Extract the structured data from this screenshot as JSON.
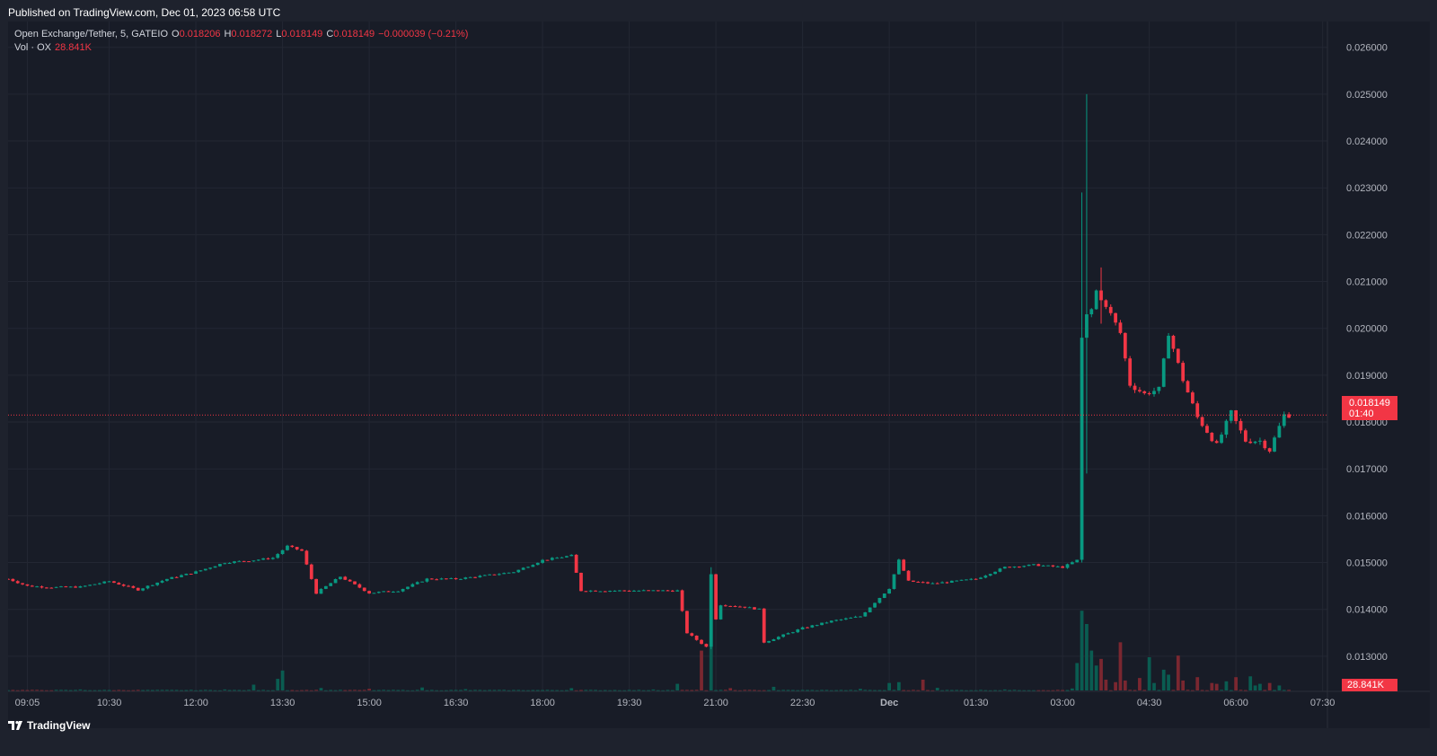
{
  "published": "Published on TradingView.com, Dec 01, 2023 06:58 UTC",
  "legend": {
    "symbol": "Open Exchange/Tether, 5, GATEIO",
    "o_label": "O",
    "o_value": "0.018206",
    "h_label": "H",
    "h_value": "0.018272",
    "l_label": "L",
    "l_value": "0.018149",
    "c_label": "C",
    "c_value": "0.018149",
    "change": "−0.000039 (−0.21%)",
    "vol_label": "Vol · OX",
    "vol_value": "28.841K"
  },
  "price_tag": {
    "price": "0.018149",
    "countdown": "01:40"
  },
  "volume_tag": "28.841K",
  "footer": {
    "brand": "TradingView",
    "logo_icon": "tradingview-logo-icon"
  },
  "colors": {
    "up": "#089981",
    "down": "#f23645",
    "up_volume": "#0a5c51",
    "down_volume": "#7a2730",
    "background": "#181c27",
    "grid": "#232733",
    "axis_text": "#b2b5be"
  },
  "chart_data": {
    "type": "candlestick",
    "interval_minutes": 5,
    "y_axis": {
      "min": 0.01225,
      "max": 0.02655,
      "ticks": [
        "0.026000",
        "0.025000",
        "0.024000",
        "0.023000",
        "0.022000",
        "0.021000",
        "0.020000",
        "0.019000",
        "0.018000",
        "0.017000",
        "0.016000",
        "0.015000",
        "0.014000",
        "0.013000"
      ]
    },
    "x_axis": {
      "start": "08:45",
      "end": "07:35",
      "tick_labels": [
        "09:05",
        "10:30",
        "12:00",
        "13:30",
        "15:00",
        "16:30",
        "18:00",
        "19:30",
        "21:00",
        "22:30",
        "Dec",
        "01:30",
        "03:00",
        "04:30",
        "06:00",
        "07:30"
      ]
    },
    "last_price": 0.018149,
    "price_path": [
      [
        "08:45",
        0.01465
      ],
      [
        "09:05",
        0.0145
      ],
      [
        "09:30",
        0.01447
      ],
      [
        "10:00",
        0.01448
      ],
      [
        "10:30",
        0.0146
      ],
      [
        "11:00",
        0.01442
      ],
      [
        "11:30",
        0.01465
      ],
      [
        "12:00",
        0.0148
      ],
      [
        "12:30",
        0.015
      ],
      [
        "13:00",
        0.01505
      ],
      [
        "13:20",
        0.0151
      ],
      [
        "13:35",
        0.01535
      ],
      [
        "13:50",
        0.01525
      ],
      [
        "14:05",
        0.01435
      ],
      [
        "14:30",
        0.0147
      ],
      [
        "15:00",
        0.01435
      ],
      [
        "15:30",
        0.0144
      ],
      [
        "16:00",
        0.01465
      ],
      [
        "16:30",
        0.01465
      ],
      [
        "17:00",
        0.01472
      ],
      [
        "17:30",
        0.0148
      ],
      [
        "18:00",
        0.01505
      ],
      [
        "18:30",
        0.01515
      ],
      [
        "18:40",
        0.0144
      ],
      [
        "19:30",
        0.0144
      ],
      [
        "20:20",
        0.0144
      ],
      [
        "20:30",
        0.0135
      ],
      [
        "20:50",
        0.0132
      ],
      [
        "21:05",
        0.0141
      ],
      [
        "21:30",
        0.01405
      ],
      [
        "21:45",
        0.014
      ],
      [
        "21:50",
        0.0133
      ],
      [
        "22:30",
        0.0136
      ],
      [
        "23:00",
        0.01375
      ],
      [
        "23:30",
        0.01385
      ],
      [
        "00:00",
        0.01445
      ],
      [
        "00:10",
        0.01505
      ],
      [
        "00:20",
        0.0146
      ],
      [
        "00:45",
        0.01455
      ],
      [
        "01:30",
        0.01465
      ],
      [
        "02:00",
        0.0149
      ],
      [
        "02:30",
        0.01495
      ],
      [
        "03:00",
        0.0149
      ],
      [
        "03:20",
        0.0151
      ],
      [
        "03:25",
        0.02
      ],
      [
        "03:35",
        0.0208
      ],
      [
        "03:45",
        0.0205
      ],
      [
        "04:00",
        0.0199
      ],
      [
        "04:10",
        0.0188
      ],
      [
        "04:25",
        0.0186
      ],
      [
        "04:40",
        0.0187
      ],
      [
        "04:50",
        0.0199
      ],
      [
        "05:05",
        0.0189
      ],
      [
        "05:20",
        0.0181
      ],
      [
        "05:40",
        0.0175
      ],
      [
        "05:55",
        0.0182
      ],
      [
        "06:10",
        0.0176
      ],
      [
        "06:25",
        0.0176
      ],
      [
        "06:35",
        0.0174
      ],
      [
        "06:50",
        0.01815
      ],
      [
        "06:58",
        0.018149
      ]
    ],
    "spikes": [
      {
        "time": "20:55",
        "high": 0.0149,
        "low": 0.01315,
        "close": 0.01475
      },
      {
        "time": "03:20",
        "high": 0.0229,
        "low": 0.015,
        "close": 0.0198
      },
      {
        "time": "03:25",
        "high": 0.025,
        "low": 0.0169,
        "close": 0.0203
      },
      {
        "time": "03:40",
        "high": 0.0213,
        "low": 0.0201,
        "close": 0.0206
      }
    ],
    "volume": {
      "max": 1000,
      "events": [
        [
          "10:00",
          6
        ],
        [
          "12:30",
          6
        ],
        [
          "13:00",
          35
        ],
        [
          "13:25",
          70
        ],
        [
          "13:30",
          120
        ],
        [
          "14:10",
          15
        ],
        [
          "15:00",
          10
        ],
        [
          "15:55",
          18
        ],
        [
          "16:40",
          8
        ],
        [
          "18:30",
          14
        ],
        [
          "19:55",
          6
        ],
        [
          "20:20",
          40
        ],
        [
          "20:45",
          240
        ],
        [
          "20:55",
          700
        ],
        [
          "21:15",
          14
        ],
        [
          "22:00",
          22
        ],
        [
          "23:30",
          10
        ],
        [
          "00:00",
          45
        ],
        [
          "00:10",
          50
        ],
        [
          "00:35",
          65
        ],
        [
          "00:50",
          16
        ],
        [
          "02:00",
          6
        ],
        [
          "03:10",
          12
        ],
        [
          "03:15",
          165
        ],
        [
          "03:20",
          480
        ],
        [
          "03:25",
          400
        ],
        [
          "03:30",
          240
        ],
        [
          "03:35",
          150
        ],
        [
          "03:40",
          190
        ],
        [
          "03:45",
          65
        ],
        [
          "03:55",
          50
        ],
        [
          "04:00",
          290
        ],
        [
          "04:05",
          60
        ],
        [
          "04:20",
          75
        ],
        [
          "04:30",
          200
        ],
        [
          "04:35",
          45
        ],
        [
          "04:45",
          125
        ],
        [
          "04:50",
          95
        ],
        [
          "05:00",
          210
        ],
        [
          "05:05",
          60
        ],
        [
          "05:20",
          80
        ],
        [
          "05:35",
          45
        ],
        [
          "05:40",
          40
        ],
        [
          "05:50",
          55
        ],
        [
          "06:00",
          80
        ],
        [
          "06:15",
          85
        ],
        [
          "06:20",
          30
        ],
        [
          "06:25",
          40
        ],
        [
          "06:35",
          45
        ],
        [
          "06:45",
          30
        ],
        [
          "06:58",
          28.841
        ]
      ]
    }
  }
}
